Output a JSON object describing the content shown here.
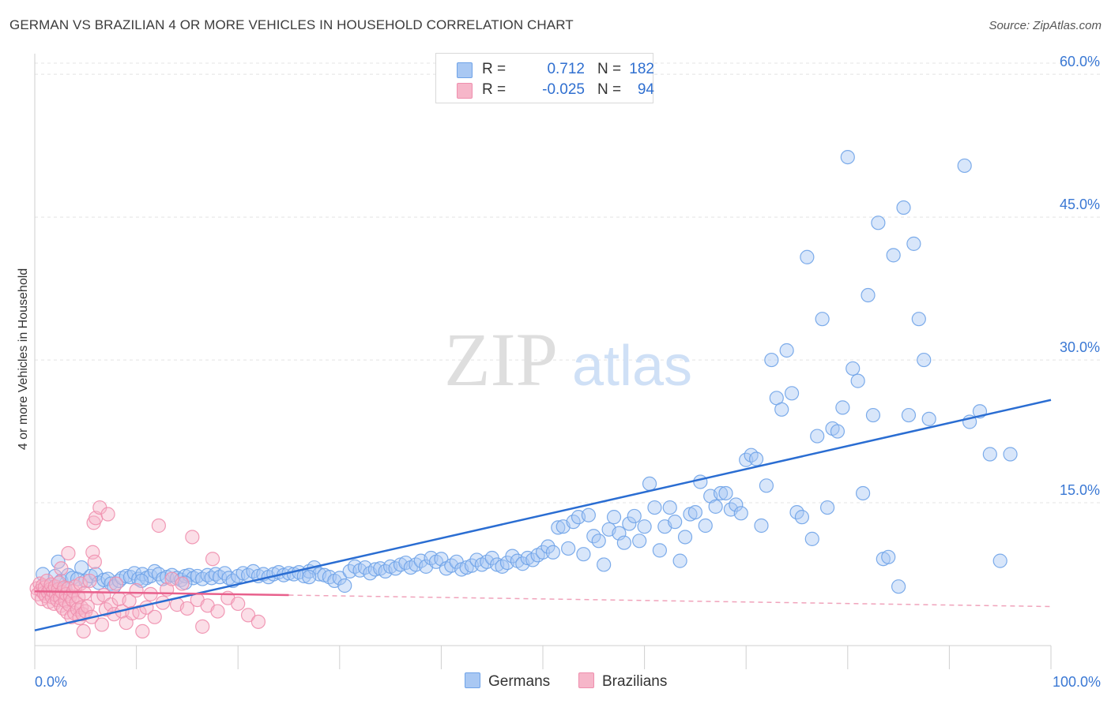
{
  "title": "GERMAN VS BRAZILIAN 4 OR MORE VEHICLES IN HOUSEHOLD CORRELATION CHART",
  "source": "Source: ZipAtlas.com",
  "watermark": {
    "zip": "ZIP",
    "atlas": "atlas"
  },
  "legend": {
    "rows": [
      {
        "r_label": "R =",
        "r_value": "0.712",
        "n_label": "N =",
        "n_value": "182",
        "color": "#a9c8f3"
      },
      {
        "r_label": "R =",
        "r_value": "-0.025",
        "n_label": "N =",
        "n_value": "94",
        "color": "#f6b6c9"
      }
    ]
  },
  "bottom_legend": [
    {
      "label": "Germans",
      "color": "#a9c8f3"
    },
    {
      "label": "Brazilians",
      "color": "#f6b6c9"
    }
  ],
  "chart_data": {
    "type": "scatter",
    "ylabel": "4 or more Vehicles in Household",
    "xlim": [
      0,
      100
    ],
    "ylim": [
      0,
      62
    ],
    "x_tick_labels": [
      "0.0%",
      "100.0%"
    ],
    "y_ticks": [
      15,
      30,
      45,
      60
    ],
    "y_tick_labels": [
      "15.0%",
      "30.0%",
      "45.0%",
      "60.0%"
    ],
    "grid": true,
    "series": [
      {
        "name": "Germans",
        "color": "#6fa3e8",
        "fill": "#a9c8f3",
        "trend": {
          "x": [
            0,
            100
          ],
          "y": [
            1.6,
            25.8
          ],
          "color": "#2a6dd2"
        },
        "points": [
          [
            0.8,
            7.5
          ],
          [
            1.5,
            6.2
          ],
          [
            2,
            7.3
          ],
          [
            2.3,
            8.8
          ],
          [
            2.6,
            6.8
          ],
          [
            3,
            6.0
          ],
          [
            3.3,
            7.4
          ],
          [
            3.7,
            7.1
          ],
          [
            4.2,
            7.0
          ],
          [
            4.6,
            8.2
          ],
          [
            5,
            6.8
          ],
          [
            5.5,
            7.3
          ],
          [
            6,
            7.5
          ],
          [
            6.3,
            6.6
          ],
          [
            6.8,
            6.9
          ],
          [
            7.2,
            7.0
          ],
          [
            7.5,
            6.5
          ],
          [
            7.8,
            6.2
          ],
          [
            8.3,
            6.8
          ],
          [
            8.6,
            7.1
          ],
          [
            9,
            7.3
          ],
          [
            9.4,
            7.2
          ],
          [
            9.8,
            7.6
          ],
          [
            10.2,
            7.0
          ],
          [
            10.6,
            7.5
          ],
          [
            11,
            7.1
          ],
          [
            11.4,
            7.3
          ],
          [
            11.8,
            7.8
          ],
          [
            12.2,
            7.5
          ],
          [
            12.6,
            7.0
          ],
          [
            13,
            7.2
          ],
          [
            13.5,
            7.4
          ],
          [
            14,
            7.1
          ],
          [
            14.4,
            6.9
          ],
          [
            14.8,
            7.3
          ],
          [
            15.2,
            7.4
          ],
          [
            15.6,
            7.1
          ],
          [
            16,
            7.3
          ],
          [
            16.5,
            7.0
          ],
          [
            17,
            7.4
          ],
          [
            17.4,
            7.1
          ],
          [
            17.8,
            7.5
          ],
          [
            18.2,
            7.2
          ],
          [
            18.7,
            7.6
          ],
          [
            19.1,
            7.1
          ],
          [
            19.5,
            6.8
          ],
          [
            20,
            7.3
          ],
          [
            20.5,
            7.6
          ],
          [
            21,
            7.4
          ],
          [
            21.5,
            7.8
          ],
          [
            22,
            7.3
          ],
          [
            22.5,
            7.5
          ],
          [
            23,
            7.2
          ],
          [
            23.5,
            7.5
          ],
          [
            24,
            7.7
          ],
          [
            24.5,
            7.4
          ],
          [
            25,
            7.6
          ],
          [
            25.5,
            7.5
          ],
          [
            26,
            7.7
          ],
          [
            26.5,
            7.3
          ],
          [
            27,
            7.8
          ],
          [
            27.5,
            8.2
          ],
          [
            28,
            7.5
          ],
          [
            28.5,
            7.4
          ],
          [
            29,
            7.2
          ],
          [
            29.5,
            6.8
          ],
          [
            30,
            7.1
          ],
          [
            30.5,
            6.3
          ],
          [
            31,
            7.8
          ],
          [
            31.5,
            8.3
          ],
          [
            32,
            7.9
          ],
          [
            32.5,
            8.2
          ],
          [
            33,
            7.6
          ],
          [
            33.5,
            8.0
          ],
          [
            34,
            8.1
          ],
          [
            34.5,
            7.8
          ],
          [
            35,
            8.3
          ],
          [
            35.5,
            8.1
          ],
          [
            36,
            8.5
          ],
          [
            36.5,
            8.7
          ],
          [
            37,
            8.2
          ],
          [
            37.5,
            8.5
          ],
          [
            38,
            8.9
          ],
          [
            38.5,
            8.3
          ],
          [
            39,
            9.2
          ],
          [
            39.5,
            8.8
          ],
          [
            40,
            9.1
          ],
          [
            40.5,
            8.1
          ],
          [
            41,
            8.4
          ],
          [
            41.5,
            8.8
          ],
          [
            42,
            8.0
          ],
          [
            42.5,
            8.2
          ],
          [
            43,
            8.4
          ],
          [
            43.5,
            9.0
          ],
          [
            44,
            8.5
          ],
          [
            44.5,
            8.8
          ],
          [
            45,
            9.2
          ],
          [
            45.5,
            8.5
          ],
          [
            46,
            8.3
          ],
          [
            46.5,
            8.7
          ],
          [
            47,
            9.4
          ],
          [
            47.5,
            8.9
          ],
          [
            48,
            8.6
          ],
          [
            48.5,
            9.2
          ],
          [
            49,
            9.0
          ],
          [
            49.5,
            9.5
          ],
          [
            50,
            9.8
          ],
          [
            50.5,
            10.4
          ],
          [
            51,
            9.8
          ],
          [
            51.5,
            12.4
          ],
          [
            52,
            12.5
          ],
          [
            52.5,
            10.2
          ],
          [
            53,
            13.0
          ],
          [
            53.5,
            13.5
          ],
          [
            54,
            9.6
          ],
          [
            54.5,
            13.7
          ],
          [
            55,
            11.5
          ],
          [
            55.5,
            11.0
          ],
          [
            56,
            8.5
          ],
          [
            56.5,
            12.2
          ],
          [
            57,
            13.5
          ],
          [
            57.5,
            11.8
          ],
          [
            58,
            10.8
          ],
          [
            58.5,
            12.8
          ],
          [
            59,
            13.6
          ],
          [
            59.5,
            11.0
          ],
          [
            60,
            12.5
          ],
          [
            60.5,
            17.0
          ],
          [
            61,
            14.5
          ],
          [
            61.5,
            10.0
          ],
          [
            62,
            12.5
          ],
          [
            62.5,
            14.5
          ],
          [
            63,
            13.0
          ],
          [
            63.5,
            8.9
          ],
          [
            64,
            11.4
          ],
          [
            64.5,
            13.8
          ],
          [
            65,
            14.0
          ],
          [
            65.5,
            17.2
          ],
          [
            66,
            12.6
          ],
          [
            66.5,
            15.7
          ],
          [
            67,
            14.6
          ],
          [
            67.5,
            16.0
          ],
          [
            68,
            16.0
          ],
          [
            68.5,
            14.3
          ],
          [
            69,
            14.8
          ],
          [
            69.5,
            13.9
          ],
          [
            70,
            19.5
          ],
          [
            70.5,
            20.0
          ],
          [
            71,
            19.6
          ],
          [
            71.5,
            12.6
          ],
          [
            72,
            16.8
          ],
          [
            72.5,
            30.0
          ],
          [
            73,
            26.0
          ],
          [
            73.5,
            24.8
          ],
          [
            74,
            31.0
          ],
          [
            74.5,
            26.5
          ],
          [
            75,
            14.0
          ],
          [
            75.5,
            13.5
          ],
          [
            76,
            40.8
          ],
          [
            76.5,
            11.2
          ],
          [
            77,
            22.0
          ],
          [
            77.5,
            34.3
          ],
          [
            78,
            14.5
          ],
          [
            78.5,
            22.8
          ],
          [
            79,
            22.5
          ],
          [
            79.5,
            25.0
          ],
          [
            80,
            51.3
          ],
          [
            80.5,
            29.1
          ],
          [
            81,
            27.8
          ],
          [
            81.5,
            16.0
          ],
          [
            82,
            36.8
          ],
          [
            82.5,
            24.2
          ],
          [
            83,
            44.4
          ],
          [
            83.5,
            9.1
          ],
          [
            84,
            9.3
          ],
          [
            84.5,
            41.0
          ],
          [
            85,
            6.2
          ],
          [
            85.5,
            46.0
          ],
          [
            86,
            24.2
          ],
          [
            86.5,
            42.2
          ],
          [
            87,
            34.3
          ],
          [
            87.5,
            30.0
          ],
          [
            88,
            23.8
          ],
          [
            91.5,
            50.4
          ],
          [
            92,
            23.5
          ],
          [
            93,
            24.6
          ],
          [
            94,
            20.1
          ],
          [
            95,
            8.9
          ],
          [
            96,
            20.1
          ],
          [
            10.5,
            6.8
          ],
          [
            14.8,
            6.6
          ],
          [
            27,
            7.2
          ]
        ]
      },
      {
        "name": "Brazilians",
        "color": "#ef8fae",
        "fill": "#f6b6c9",
        "trend": {
          "x": [
            0,
            25
          ],
          "y": [
            5.7,
            5.3
          ],
          "color": "#e8608c"
        },
        "trend_ext": {
          "x": [
            25,
            100
          ],
          "y": [
            5.3,
            4.1
          ],
          "color": "#f0a3bb"
        },
        "points": [
          [
            0.2,
            6.0
          ],
          [
            0.3,
            5.4
          ],
          [
            0.5,
            6.5
          ],
          [
            0.6,
            5.8
          ],
          [
            0.7,
            4.9
          ],
          [
            0.8,
            6.3
          ],
          [
            0.9,
            5.5
          ],
          [
            1.0,
            6.1
          ],
          [
            1.1,
            5.2
          ],
          [
            1.2,
            6.8
          ],
          [
            1.3,
            5.6
          ],
          [
            1.4,
            4.6
          ],
          [
            1.5,
            5.9
          ],
          [
            1.6,
            6.4
          ],
          [
            1.7,
            5.1
          ],
          [
            1.8,
            5.7
          ],
          [
            1.9,
            4.4
          ],
          [
            2.0,
            6.2
          ],
          [
            2.1,
            5.3
          ],
          [
            2.2,
            4.8
          ],
          [
            2.3,
            5.9
          ],
          [
            2.4,
            6.6
          ],
          [
            2.5,
            5.0
          ],
          [
            2.6,
            4.2
          ],
          [
            2.7,
            5.6
          ],
          [
            2.8,
            3.9
          ],
          [
            2.9,
            6.1
          ],
          [
            3.0,
            4.7
          ],
          [
            3.1,
            5.4
          ],
          [
            3.2,
            3.5
          ],
          [
            3.3,
            6.0
          ],
          [
            3.4,
            4.3
          ],
          [
            3.5,
            5.2
          ],
          [
            3.6,
            3.0
          ],
          [
            3.7,
            4.8
          ],
          [
            3.8,
            5.7
          ],
          [
            3.9,
            3.4
          ],
          [
            4.0,
            6.2
          ],
          [
            4.1,
            4.5
          ],
          [
            4.2,
            3.8
          ],
          [
            4.3,
            5.1
          ],
          [
            4.4,
            2.9
          ],
          [
            4.5,
            6.5
          ],
          [
            4.6,
            4.0
          ],
          [
            4.7,
            3.3
          ],
          [
            4.8,
            1.5
          ],
          [
            4.9,
            5.5
          ],
          [
            5.0,
            3.6
          ],
          [
            5.2,
            4.1
          ],
          [
            5.4,
            6.8
          ],
          [
            5.6,
            3.0
          ],
          [
            5.8,
            12.9
          ],
          [
            6.0,
            13.4
          ],
          [
            6.2,
            5.0
          ],
          [
            6.4,
            14.5
          ],
          [
            6.6,
            2.2
          ],
          [
            6.8,
            5.3
          ],
          [
            7.0,
            3.8
          ],
          [
            7.2,
            13.8
          ],
          [
            7.5,
            4.3
          ],
          [
            7.8,
            3.3
          ],
          [
            8.0,
            6.5
          ],
          [
            8.3,
            4.9
          ],
          [
            8.6,
            3.6
          ],
          [
            9.0,
            2.4
          ],
          [
            9.3,
            4.7
          ],
          [
            9.6,
            3.4
          ],
          [
            10.0,
            5.8
          ],
          [
            10.3,
            3.5
          ],
          [
            10.6,
            1.5
          ],
          [
            11.0,
            4.0
          ],
          [
            11.4,
            5.4
          ],
          [
            11.8,
            3.0
          ],
          [
            12.2,
            12.6
          ],
          [
            12.6,
            4.5
          ],
          [
            13.0,
            5.9
          ],
          [
            13.5,
            7.0
          ],
          [
            14.0,
            4.3
          ],
          [
            14.5,
            6.5
          ],
          [
            15.0,
            3.9
          ],
          [
            15.5,
            11.4
          ],
          [
            16.0,
            4.8
          ],
          [
            16.5,
            2.0
          ],
          [
            17.0,
            4.2
          ],
          [
            17.5,
            9.1
          ],
          [
            18.0,
            3.6
          ],
          [
            19.0,
            5.0
          ],
          [
            20.0,
            4.4
          ],
          [
            21.0,
            3.2
          ],
          [
            22.0,
            2.5
          ],
          [
            5.7,
            9.8
          ],
          [
            5.9,
            8.8
          ],
          [
            3.3,
            9.7
          ],
          [
            2.6,
            8.1
          ]
        ]
      }
    ]
  }
}
